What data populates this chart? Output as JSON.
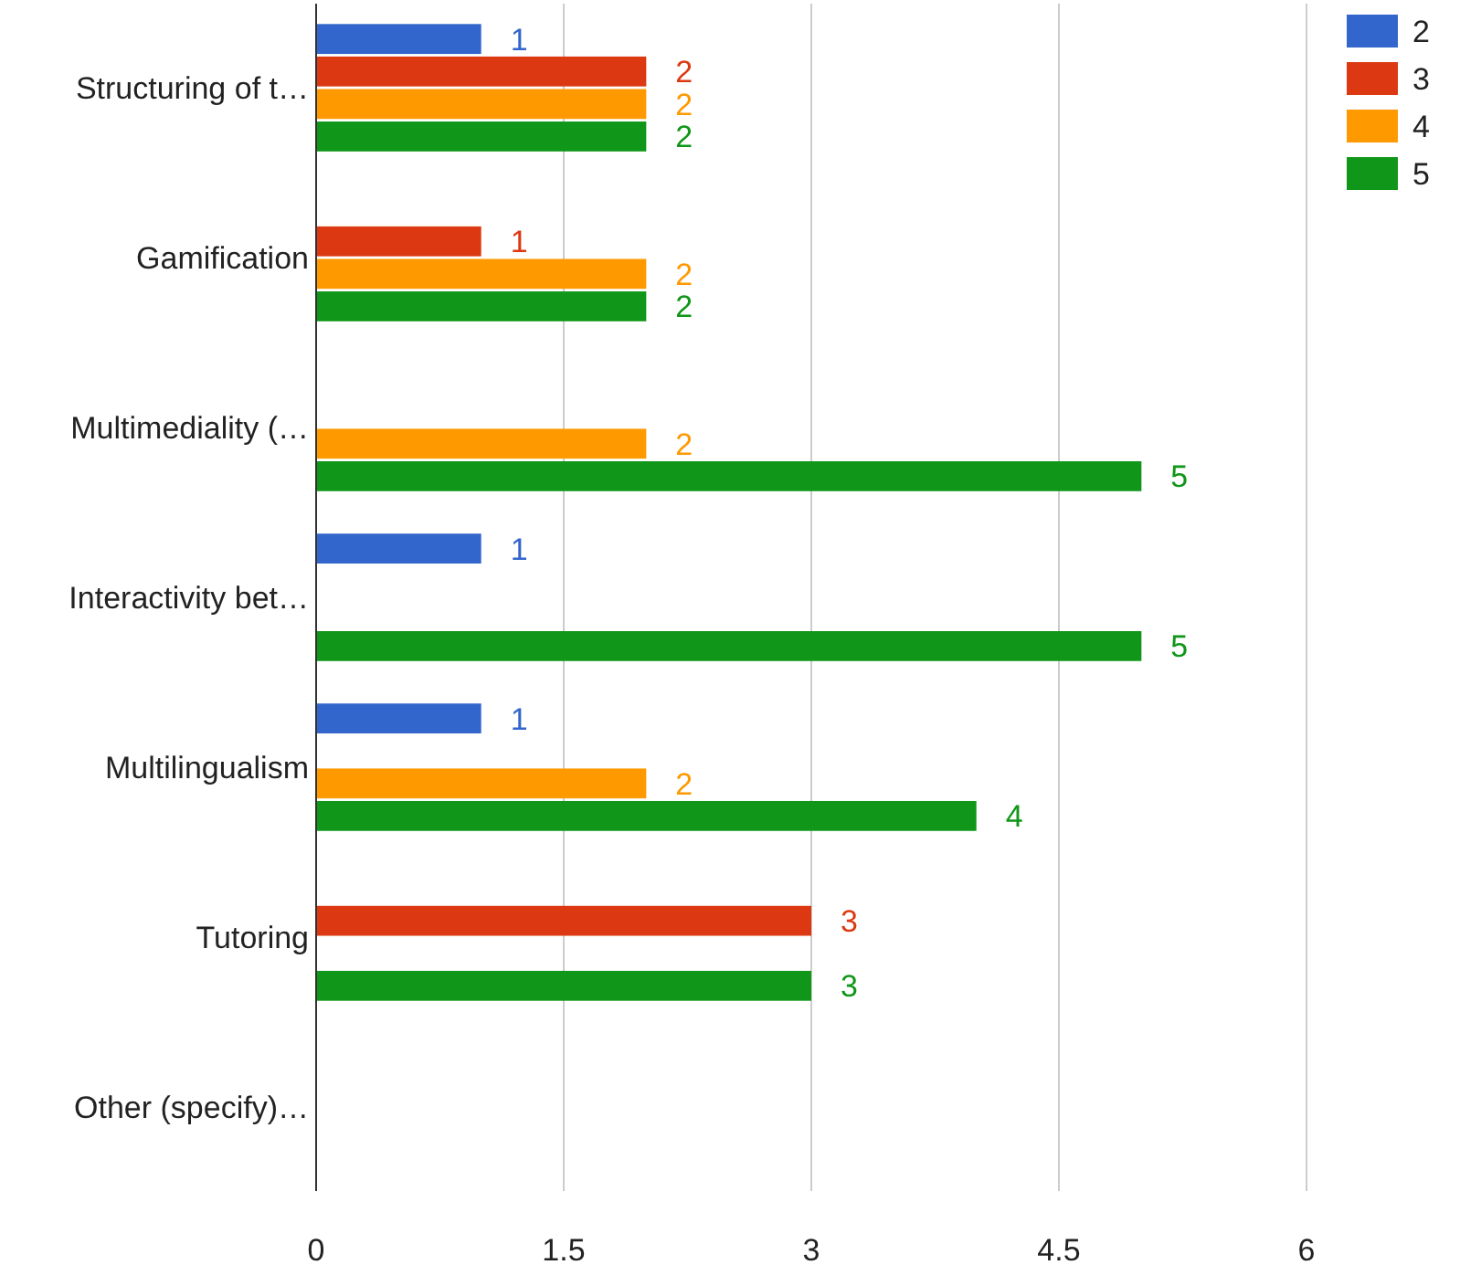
{
  "chart_data": {
    "type": "bar",
    "orientation": "horizontal",
    "categories": [
      "Structuring of t…",
      "Gamification",
      "Multimediality (…",
      "Interactivity bet…",
      "Multilingualism",
      "Tutoring",
      "Other (specify)…"
    ],
    "series": [
      {
        "name": "2",
        "color": "#3366cc",
        "values": [
          1,
          null,
          null,
          1,
          1,
          null,
          null
        ]
      },
      {
        "name": "3",
        "color": "#dc3912",
        "values": [
          2,
          1,
          null,
          null,
          null,
          3,
          null
        ]
      },
      {
        "name": "4",
        "color": "#ff9900",
        "values": [
          2,
          2,
          2,
          null,
          2,
          null,
          null
        ]
      },
      {
        "name": "5",
        "color": "#109618",
        "values": [
          2,
          2,
          5,
          5,
          4,
          3,
          null
        ]
      }
    ],
    "xlim": [
      0,
      6
    ],
    "xticks": [
      0,
      1.5,
      3,
      4.5,
      6
    ],
    "grid": "x",
    "legend": "top right",
    "data_labels": true
  }
}
